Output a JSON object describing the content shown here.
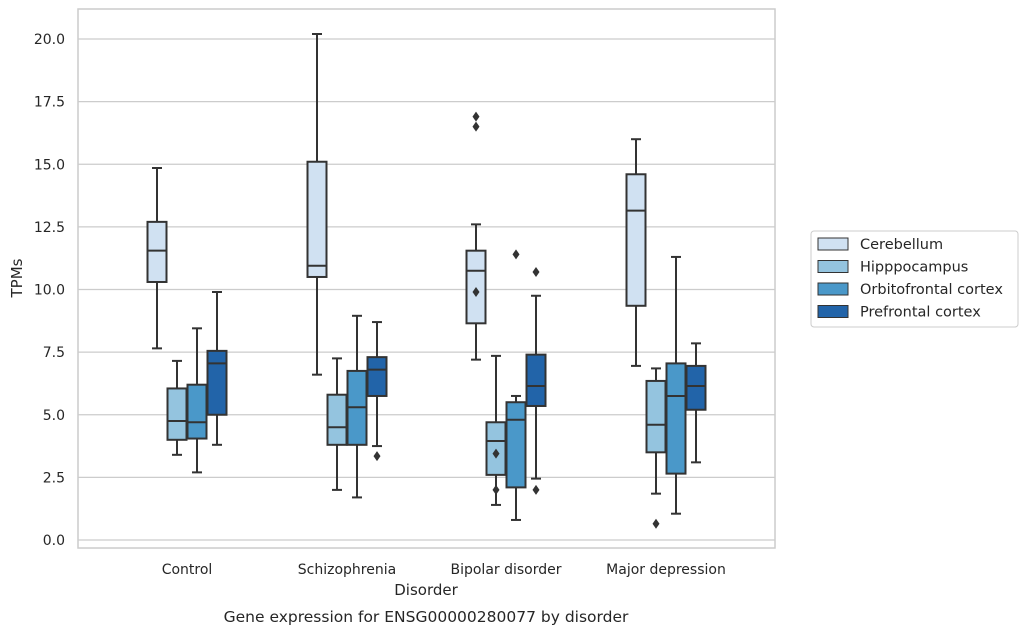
{
  "chart_data": {
    "type": "box",
    "caption": "Gene expression for ENSG00000280077 by disorder",
    "xlabel": "Disorder",
    "ylabel": "TPMs",
    "ylim": [
      -0.3,
      21.2
    ],
    "yticks": [
      0.0,
      2.5,
      5.0,
      7.5,
      10.0,
      12.5,
      15.0,
      17.5,
      20.0
    ],
    "ytick_labels": [
      "0.0",
      "2.5",
      "5.0",
      "7.5",
      "10.0",
      "12.5",
      "15.0",
      "17.5",
      "20.0"
    ],
    "grid": "horizontal",
    "legend_position": "right-outside",
    "categories": [
      "Control",
      "Schizophrenia",
      "Bipolar disorder",
      "Major depression"
    ],
    "series": [
      {
        "name": "Cerebellum",
        "color": "#d0e1f2",
        "boxes": [
          {
            "whislo": 7.65,
            "q1": 10.3,
            "med": 11.55,
            "q3": 12.7,
            "whishi": 14.85,
            "fliers": []
          },
          {
            "whislo": 6.6,
            "q1": 10.5,
            "med": 10.95,
            "q3": 15.1,
            "whishi": 20.2,
            "fliers": []
          },
          {
            "whislo": 7.2,
            "q1": 8.65,
            "med": 10.75,
            "q3": 11.55,
            "whishi": 12.6,
            "fliers": [
              16.5,
              16.9,
              9.9
            ]
          },
          {
            "whislo": 6.95,
            "q1": 9.35,
            "med": 13.15,
            "q3": 14.6,
            "whishi": 16.0,
            "fliers": []
          }
        ]
      },
      {
        "name": "Hipppocampus",
        "color": "#94c4df",
        "boxes": [
          {
            "whislo": 3.4,
            "q1": 4.0,
            "med": 4.75,
            "q3": 6.05,
            "whishi": 7.15,
            "fliers": []
          },
          {
            "whislo": 2.0,
            "q1": 3.8,
            "med": 4.5,
            "q3": 5.8,
            "whishi": 7.25,
            "fliers": []
          },
          {
            "whislo": 1.4,
            "q1": 2.6,
            "med": 3.95,
            "q3": 4.7,
            "whishi": 7.35,
            "fliers": [
              3.45,
              2.0
            ]
          },
          {
            "whislo": 1.85,
            "q1": 3.5,
            "med": 4.6,
            "q3": 6.35,
            "whishi": 6.85,
            "fliers": [
              0.65
            ]
          }
        ]
      },
      {
        "name": "Orbitofrontal cortex",
        "color": "#4a98c9",
        "boxes": [
          {
            "whislo": 2.7,
            "q1": 4.05,
            "med": 4.7,
            "q3": 6.2,
            "whishi": 8.45,
            "fliers": []
          },
          {
            "whislo": 1.7,
            "q1": 3.8,
            "med": 5.3,
            "q3": 6.75,
            "whishi": 8.95,
            "fliers": []
          },
          {
            "whislo": 0.8,
            "q1": 2.1,
            "med": 4.8,
            "q3": 5.5,
            "whishi": 5.75,
            "fliers": [
              11.4
            ]
          },
          {
            "whislo": 1.05,
            "q1": 2.65,
            "med": 5.75,
            "q3": 7.05,
            "whishi": 11.3,
            "fliers": []
          }
        ]
      },
      {
        "name": "Prefrontal cortex",
        "color": "#2264a9",
        "boxes": [
          {
            "whislo": 3.8,
            "q1": 5.0,
            "med": 7.05,
            "q3": 7.55,
            "whishi": 9.9,
            "fliers": []
          },
          {
            "whislo": 3.75,
            "q1": 5.75,
            "med": 6.8,
            "q3": 7.3,
            "whishi": 8.7,
            "fliers": [
              3.35
            ]
          },
          {
            "whislo": 2.45,
            "q1": 5.35,
            "med": 6.15,
            "q3": 7.4,
            "whishi": 9.75,
            "fliers": [
              10.7,
              2.0
            ]
          },
          {
            "whislo": 3.1,
            "q1": 5.2,
            "med": 6.15,
            "q3": 6.95,
            "whishi": 7.85,
            "fliers": []
          }
        ]
      }
    ]
  }
}
